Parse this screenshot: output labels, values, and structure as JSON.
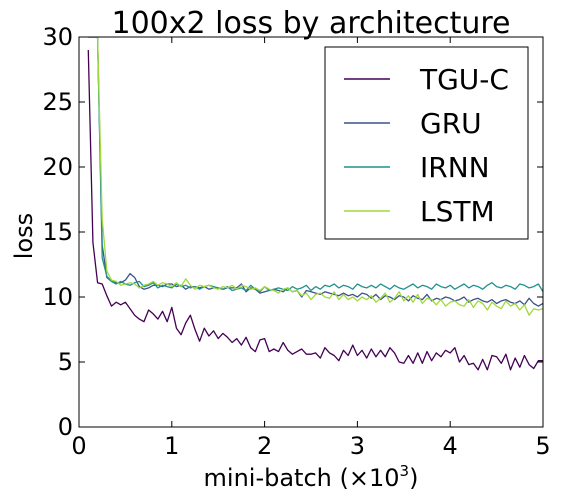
{
  "chart_data": {
    "type": "line",
    "title": "100x2 loss by architecture",
    "xlabel": "mini-batch",
    "xlabel_unit": "(×10",
    "xlabel_exponent": "3",
    "xlabel_close": ")",
    "ylabel": "loss",
    "xlim": [
      0,
      5
    ],
    "ylim": [
      0,
      30
    ],
    "xticks": [
      "0",
      "1",
      "2",
      "3",
      "4",
      "5"
    ],
    "yticks": [
      "0",
      "5",
      "10",
      "15",
      "20",
      "25",
      "30"
    ],
    "grid": false,
    "legend_position": "top-right",
    "x": [
      0.1,
      0.15,
      0.2,
      0.25,
      0.3,
      0.35,
      0.4,
      0.45,
      0.5,
      0.55,
      0.6,
      0.65,
      0.7,
      0.75,
      0.8,
      0.85,
      0.9,
      0.95,
      1.0,
      1.05,
      1.1,
      1.15,
      1.2,
      1.25,
      1.3,
      1.35,
      1.4,
      1.45,
      1.5,
      1.55,
      1.6,
      1.65,
      1.7,
      1.75,
      1.8,
      1.85,
      1.9,
      1.95,
      2.0,
      2.05,
      2.1,
      2.15,
      2.2,
      2.25,
      2.3,
      2.35,
      2.4,
      2.45,
      2.5,
      2.55,
      2.6,
      2.65,
      2.7,
      2.75,
      2.8,
      2.85,
      2.9,
      2.95,
      3.0,
      3.05,
      3.1,
      3.15,
      3.2,
      3.25,
      3.3,
      3.35,
      3.4,
      3.45,
      3.5,
      3.55,
      3.6,
      3.65,
      3.7,
      3.75,
      3.8,
      3.85,
      3.9,
      3.95,
      4.0,
      4.05,
      4.1,
      4.15,
      4.2,
      4.25,
      4.3,
      4.35,
      4.4,
      4.45,
      4.5,
      4.55,
      4.6,
      4.65,
      4.7,
      4.75,
      4.8,
      4.85,
      4.9,
      4.95,
      5.0
    ],
    "series": [
      {
        "name": "TGU-C",
        "color": "#440154",
        "values": [
          29.0,
          14.2,
          11.1,
          11.0,
          10.1,
          9.3,
          9.6,
          9.4,
          9.6,
          9.1,
          8.6,
          8.3,
          8.1,
          9.0,
          8.7,
          8.3,
          8.9,
          8.1,
          9.2,
          7.6,
          7.1,
          8.0,
          8.6,
          7.5,
          6.6,
          7.6,
          7.0,
          7.4,
          6.8,
          7.2,
          6.9,
          6.5,
          6.8,
          6.3,
          6.9,
          6.1,
          5.8,
          6.7,
          6.8,
          5.8,
          6.0,
          5.8,
          6.5,
          5.9,
          5.6,
          5.8,
          6.0,
          5.6,
          5.6,
          5.7,
          5.3,
          6.1,
          5.7,
          5.5,
          5.1,
          5.9,
          5.5,
          6.3,
          5.5,
          5.9,
          5.3,
          6.0,
          5.4,
          5.9,
          5.4,
          6.1,
          5.7,
          5.0,
          4.9,
          5.5,
          4.9,
          5.7,
          4.9,
          5.8,
          5.1,
          5.7,
          5.4,
          5.9,
          5.7,
          6.1,
          5.0,
          5.5,
          4.8,
          4.9,
          4.4,
          5.2,
          4.4,
          5.5,
          5.4,
          4.9,
          5.6,
          4.4,
          5.3,
          4.6,
          5.5,
          4.8,
          4.5,
          5.1,
          5.1
        ]
      },
      {
        "name": "GRU",
        "color": "#3b528b",
        "values": [
          30.0,
          30.0,
          30.0,
          14.0,
          11.5,
          11.2,
          11.1,
          11.1,
          11.3,
          11.8,
          11.5,
          10.8,
          10.6,
          10.7,
          10.9,
          10.9,
          10.8,
          11.0,
          11.0,
          10.8,
          10.9,
          10.6,
          10.8,
          10.8,
          10.7,
          10.8,
          10.6,
          10.7,
          10.7,
          10.6,
          10.7,
          10.7,
          10.7,
          11.0,
          10.4,
          10.7,
          10.6,
          10.3,
          10.4,
          10.5,
          10.6,
          10.5,
          10.4,
          10.7,
          10.4,
          10.5,
          10.0,
          10.5,
          10.4,
          10.3,
          10.2,
          10.4,
          10.3,
          10.2,
          10.1,
          10.3,
          10.1,
          10.2,
          10.0,
          10.3,
          10.2,
          9.9,
          10.2,
          9.8,
          10.1,
          10.0,
          9.8,
          10.1,
          10.0,
          9.7,
          10.1,
          9.9,
          9.8,
          10.2,
          9.7,
          9.9,
          9.8,
          10.0,
          9.9,
          9.7,
          9.8,
          10.0,
          9.6,
          9.8,
          9.9,
          9.7,
          9.6,
          9.8,
          9.5,
          9.7,
          9.8,
          9.6,
          9.5,
          9.7,
          9.4,
          9.9,
          9.5,
          9.3,
          9.5
        ]
      },
      {
        "name": "IRNN",
        "color": "#21918c",
        "values": [
          30.0,
          30.0,
          30.0,
          13.0,
          11.6,
          11.2,
          11.0,
          11.2,
          11.0,
          10.9,
          11.1,
          11.2,
          10.8,
          10.9,
          11.1,
          10.7,
          10.9,
          10.8,
          10.7,
          11.0,
          10.8,
          10.9,
          10.7,
          10.8,
          10.6,
          10.8,
          10.9,
          10.8,
          10.7,
          10.6,
          10.8,
          10.5,
          10.6,
          10.7,
          10.5,
          10.9,
          10.6,
          10.4,
          10.8,
          10.5,
          10.6,
          10.7,
          10.6,
          10.5,
          10.8,
          10.6,
          10.7,
          10.9,
          10.5,
          10.8,
          10.6,
          10.9,
          10.8,
          11.0,
          10.7,
          10.9,
          10.8,
          10.6,
          11.0,
          10.8,
          10.7,
          10.9,
          10.7,
          11.0,
          10.8,
          10.6,
          10.9,
          10.7,
          10.6,
          10.8,
          11.0,
          10.7,
          10.9,
          10.8,
          10.6,
          11.0,
          10.8,
          10.7,
          10.9,
          10.6,
          10.8,
          11.0,
          10.7,
          10.9,
          10.8,
          10.6,
          10.9,
          11.1,
          10.8,
          10.7,
          10.9,
          10.8,
          10.6,
          11.0,
          10.9,
          10.7,
          10.8,
          11.0,
          10.4
        ]
      },
      {
        "name": "LSTM",
        "color": "#9fda3a",
        "values": [
          30.0,
          30.0,
          30.0,
          16.0,
          12.0,
          11.3,
          11.2,
          10.9,
          11.0,
          11.1,
          11.0,
          10.7,
          10.9,
          11.0,
          11.2,
          10.9,
          11.1,
          11.0,
          10.8,
          11.1,
          10.8,
          11.4,
          10.9,
          10.6,
          10.9,
          10.8,
          10.9,
          10.7,
          10.6,
          10.8,
          10.7,
          10.9,
          10.6,
          10.9,
          10.8,
          10.6,
          10.7,
          10.5,
          10.8,
          10.6,
          10.5,
          10.3,
          10.6,
          10.7,
          10.4,
          10.5,
          10.1,
          10.3,
          9.8,
          10.2,
          10.3,
          10.0,
          9.9,
          10.4,
          9.8,
          10.2,
          9.8,
          10.0,
          9.7,
          10.0,
          9.8,
          10.1,
          9.6,
          9.9,
          10.3,
          9.6,
          9.9,
          10.4,
          9.7,
          10.1,
          9.6,
          10.2,
          9.5,
          9.9,
          9.8,
          9.4,
          9.8,
          9.3,
          9.6,
          9.7,
          9.4,
          9.3,
          9.8,
          9.2,
          9.7,
          9.5,
          9.0,
          9.6,
          9.3,
          9.1,
          9.7,
          9.3,
          9.5,
          9.0,
          9.4,
          8.6,
          9.1,
          9.0,
          9.1
        ]
      }
    ]
  }
}
